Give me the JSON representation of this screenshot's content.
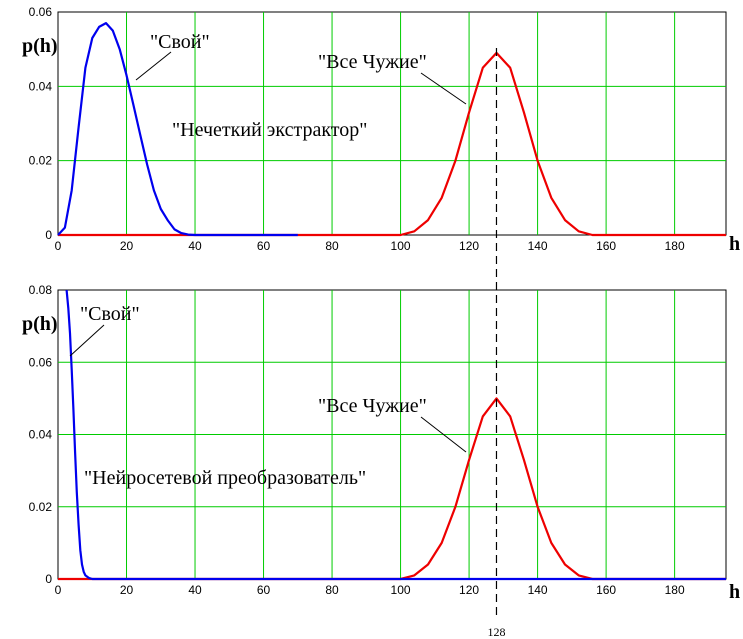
{
  "chart_data": [
    {
      "type": "line",
      "ylabel": "p(h)",
      "xlabel": "h",
      "xlim": [
        0,
        195
      ],
      "ylim": [
        0,
        0.06
      ],
      "xticks": [
        0,
        20,
        40,
        60,
        80,
        100,
        120,
        140,
        160,
        180
      ],
      "yticks": [
        0,
        0.02,
        0.04,
        0.06
      ],
      "ytick_labels": [
        "0",
        "0.02",
        "0.04",
        "0.06"
      ],
      "grid": true,
      "colors": {
        "grid": "#00cc00",
        "own": "#0000ee",
        "others": "#ee0000",
        "marker": "#000000"
      },
      "series": [
        {
          "name": "\"Свой\"",
          "x": [
            0,
            2,
            4,
            6,
            8,
            10,
            12,
            14,
            16,
            18,
            20,
            22,
            24,
            26,
            28,
            30,
            32,
            34,
            36,
            38,
            40,
            70
          ],
          "y": [
            0,
            0.002,
            0.012,
            0.029,
            0.045,
            0.053,
            0.056,
            0.057,
            0.055,
            0.05,
            0.043,
            0.035,
            0.027,
            0.019,
            0.012,
            0.007,
            0.004,
            0.0015,
            0.0005,
            0.0001,
            0,
            0
          ]
        },
        {
          "name": "\"Все Чужие\"",
          "x": [
            0,
            100,
            104,
            108,
            112,
            116,
            120,
            124,
            128,
            132,
            136,
            140,
            144,
            148,
            152,
            156,
            195
          ],
          "y": [
            0,
            0,
            0.001,
            0.004,
            0.01,
            0.02,
            0.033,
            0.045,
            0.049,
            0.045,
            0.033,
            0.02,
            0.01,
            0.004,
            0.001,
            0,
            0
          ]
        }
      ],
      "annotations": [
        {
          "text": "\"Свой\""
        },
        {
          "text": "\"Все Чужие\""
        },
        {
          "text": "\"Нечеткий экстрактор\""
        }
      ]
    },
    {
      "type": "line",
      "ylabel": "p(h)",
      "xlabel": "h",
      "xlim": [
        0,
        195
      ],
      "ylim": [
        0,
        0.08
      ],
      "xticks": [
        0,
        20,
        40,
        60,
        80,
        100,
        120,
        140,
        160,
        180
      ],
      "yticks": [
        0,
        0.02,
        0.04,
        0.06,
        0.08
      ],
      "ytick_labels": [
        "0",
        "0.02",
        "0.04",
        "0.06",
        "0.08"
      ],
      "grid": true,
      "colors": {
        "grid": "#00cc00",
        "own": "#0000ee",
        "others": "#ee0000",
        "marker": "#000000"
      },
      "series": [
        {
          "name": "\"Свой\"",
          "x": [
            2.5,
            3,
            3.5,
            4,
            4.5,
            5,
            5.5,
            6,
            6.5,
            7,
            7.5,
            8,
            9,
            10,
            195
          ],
          "y": [
            0.08,
            0.075,
            0.068,
            0.058,
            0.047,
            0.035,
            0.024,
            0.015,
            0.008,
            0.004,
            0.002,
            0.001,
            0.0003,
            0,
            0
          ]
        },
        {
          "name": "\"Все Чужие\"",
          "x": [
            0,
            100,
            104,
            108,
            112,
            116,
            120,
            124,
            128,
            132,
            136,
            140,
            144,
            148,
            152,
            156,
            195
          ],
          "y": [
            0,
            0,
            0.001,
            0.004,
            0.01,
            0.02,
            0.033,
            0.045,
            0.05,
            0.045,
            0.033,
            0.02,
            0.01,
            0.004,
            0.001,
            0,
            0
          ]
        }
      ],
      "annotations": [
        {
          "text": "\"Свой\""
        },
        {
          "text": "\"Все Чужие\""
        },
        {
          "text": "\"Нейросетевой преобразователь\""
        }
      ],
      "marker_line": {
        "x": 128,
        "label": "128"
      }
    }
  ]
}
